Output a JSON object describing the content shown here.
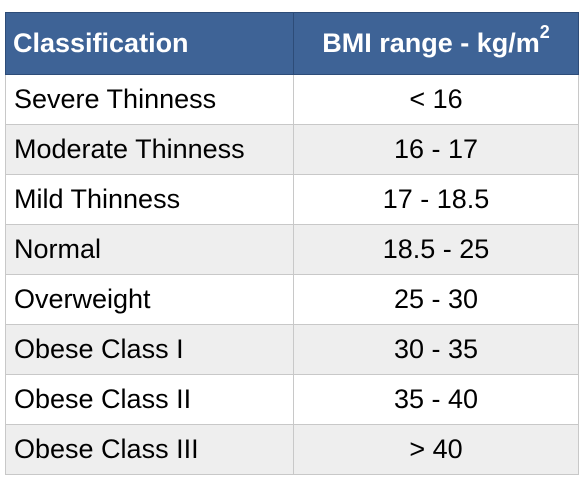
{
  "header": {
    "classification": "Classification",
    "range_prefix": "BMI range - kg/m",
    "range_superscript": "2"
  },
  "rows": [
    {
      "classification": "Severe Thinness",
      "range": "< 16"
    },
    {
      "classification": "Moderate Thinness",
      "range": "16 - 17"
    },
    {
      "classification": "Mild Thinness",
      "range": "17 - 18.5"
    },
    {
      "classification": "Normal",
      "range": "18.5 - 25"
    },
    {
      "classification": "Overweight",
      "range": "25 - 30"
    },
    {
      "classification": "Obese Class I",
      "range": "30 - 35"
    },
    {
      "classification": "Obese Class II",
      "range": "35 - 40"
    },
    {
      "classification": "Obese Class III",
      "range": "> 40"
    }
  ],
  "colors": {
    "header_bg": "#3e6396",
    "header_text": "#ffffff",
    "row_alt_bg": "#eeeeee",
    "border": "#c8c8c8"
  }
}
